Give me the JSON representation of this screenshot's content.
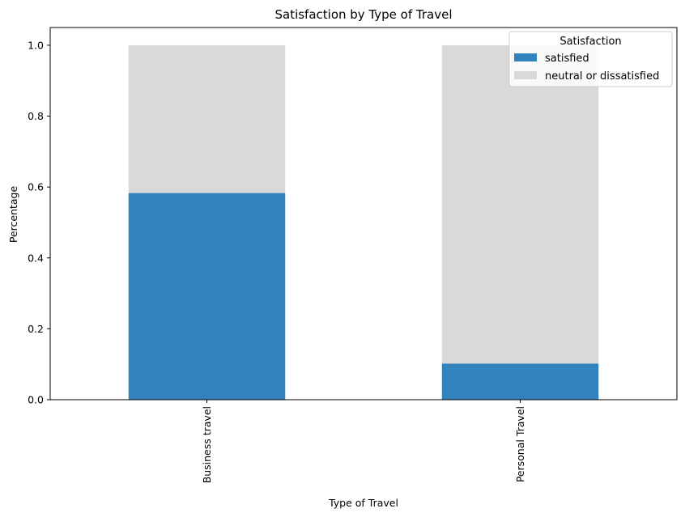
{
  "chart_data": {
    "type": "bar",
    "stacked": true,
    "title": "Satisfaction by Type of Travel",
    "xlabel": "Type of Travel",
    "ylabel": "Percentage",
    "categories": [
      "Business travel",
      "Personal Travel"
    ],
    "series": [
      {
        "name": "satisfied",
        "values": [
          0.583,
          0.102
        ],
        "color": "#3182bd"
      },
      {
        "name": "neutral or dissatisfied",
        "values": [
          0.417,
          0.898
        ],
        "color": "#d9d9d9"
      }
    ],
    "ylim": [
      0,
      1.05
    ],
    "yticks": [
      0.0,
      0.2,
      0.4,
      0.6,
      0.8,
      1.0
    ],
    "ytick_labels": [
      "0.0",
      "0.2",
      "0.4",
      "0.6",
      "0.8",
      "1.0"
    ],
    "grid": false,
    "legend": {
      "title": "Satisfaction",
      "placement": "top-right"
    }
  }
}
